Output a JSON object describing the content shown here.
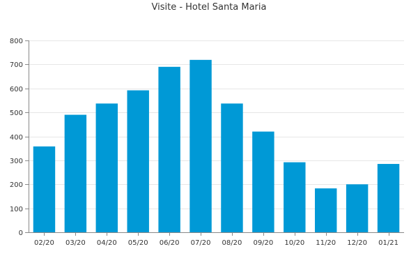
{
  "chart_data": {
    "type": "bar",
    "title": "Visite - Hotel Santa Maria",
    "xlabel": "",
    "ylabel": "",
    "categories": [
      "02/20",
      "03/20",
      "04/20",
      "05/20",
      "06/20",
      "07/20",
      "08/20",
      "09/20",
      "10/20",
      "11/20",
      "12/20",
      "01/21"
    ],
    "values": [
      358,
      490,
      537,
      592,
      690,
      719,
      537,
      420,
      292,
      183,
      200,
      285
    ],
    "ylim": [
      0,
      800
    ],
    "yticks": [
      0,
      100,
      200,
      300,
      400,
      500,
      600,
      700,
      800
    ],
    "grid": true,
    "legend": "none",
    "bar_color": "#0099d6",
    "grid_color": "#e6e6e6",
    "axis_color": "#888888"
  }
}
